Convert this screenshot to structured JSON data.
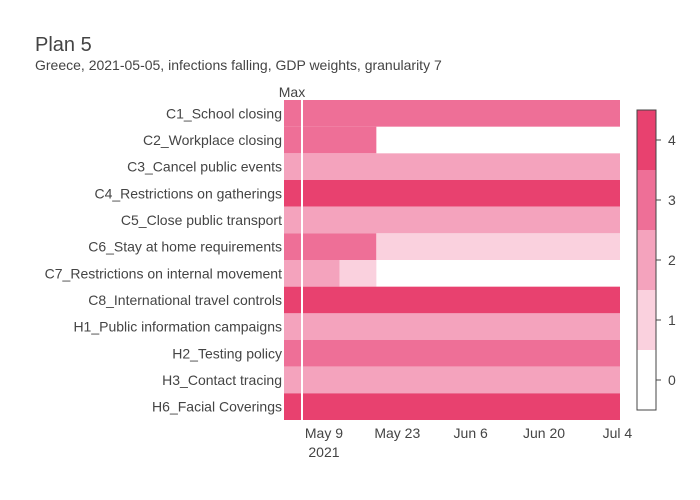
{
  "title": "Plan 5",
  "subtitle": "Greece, 2021-05-05, infections falling, GDP weights, granularity 7",
  "chart_data": {
    "type": "heatmap",
    "max_column_label": "Max",
    "rows": [
      "C1_School closing",
      "C2_Workplace closing",
      "C3_Cancel public events",
      "C4_Restrictions on gatherings",
      "C5_Close public transport",
      "C6_Stay at home requirements",
      "C7_Restrictions on internal movement",
      "C8_International travel controls",
      "H1_Public information campaigns",
      "H2_Testing policy",
      "H3_Contact tracing",
      "H6_Facial Coverings"
    ],
    "max_values": [
      3,
      3,
      2,
      4,
      2,
      3,
      2,
      4,
      2,
      3,
      2,
      4
    ],
    "x_start": "2021-05-05",
    "x_end": "2021-07-04",
    "x_ticks": [
      {
        "date": "2021-05-09",
        "label": "May 9",
        "sublabel": "2021"
      },
      {
        "date": "2021-05-23",
        "label": "May 23",
        "sublabel": ""
      },
      {
        "date": "2021-06-06",
        "label": "Jun 6",
        "sublabel": ""
      },
      {
        "date": "2021-06-20",
        "label": "Jun 20",
        "sublabel": ""
      },
      {
        "date": "2021-07-04",
        "label": "Jul 4",
        "sublabel": ""
      }
    ],
    "segments": [
      [
        {
          "start": "2021-05-05",
          "end": "2021-07-04",
          "value": 3
        }
      ],
      [
        {
          "start": "2021-05-05",
          "end": "2021-05-19",
          "value": 3
        }
      ],
      [
        {
          "start": "2021-05-05",
          "end": "2021-07-04",
          "value": 2
        }
      ],
      [
        {
          "start": "2021-05-05",
          "end": "2021-07-04",
          "value": 4
        }
      ],
      [
        {
          "start": "2021-05-05",
          "end": "2021-07-04",
          "value": 2
        }
      ],
      [
        {
          "start": "2021-05-05",
          "end": "2021-05-19",
          "value": 3
        },
        {
          "start": "2021-05-19",
          "end": "2021-07-04",
          "value": 1
        }
      ],
      [
        {
          "start": "2021-05-05",
          "end": "2021-05-12",
          "value": 2
        },
        {
          "start": "2021-05-12",
          "end": "2021-05-19",
          "value": 1
        }
      ],
      [
        {
          "start": "2021-05-05",
          "end": "2021-07-04",
          "value": 4
        }
      ],
      [
        {
          "start": "2021-05-05",
          "end": "2021-07-04",
          "value": 2
        }
      ],
      [
        {
          "start": "2021-05-05",
          "end": "2021-07-04",
          "value": 3
        }
      ],
      [
        {
          "start": "2021-05-05",
          "end": "2021-07-04",
          "value": 2
        }
      ],
      [
        {
          "start": "2021-05-05",
          "end": "2021-07-04",
          "value": 4
        }
      ]
    ],
    "colorscale": [
      {
        "value": 0,
        "color": "#ffffff"
      },
      {
        "value": 1,
        "color": "#fad1de"
      },
      {
        "value": 2,
        "color": "#f4a3bd"
      },
      {
        "value": 3,
        "color": "#ee6f97"
      },
      {
        "value": 4,
        "color": "#e8416f"
      }
    ],
    "colorbar_ticks": [
      "0",
      "1",
      "2",
      "3",
      "4"
    ],
    "zrange": [
      -0.5,
      4.5
    ]
  }
}
